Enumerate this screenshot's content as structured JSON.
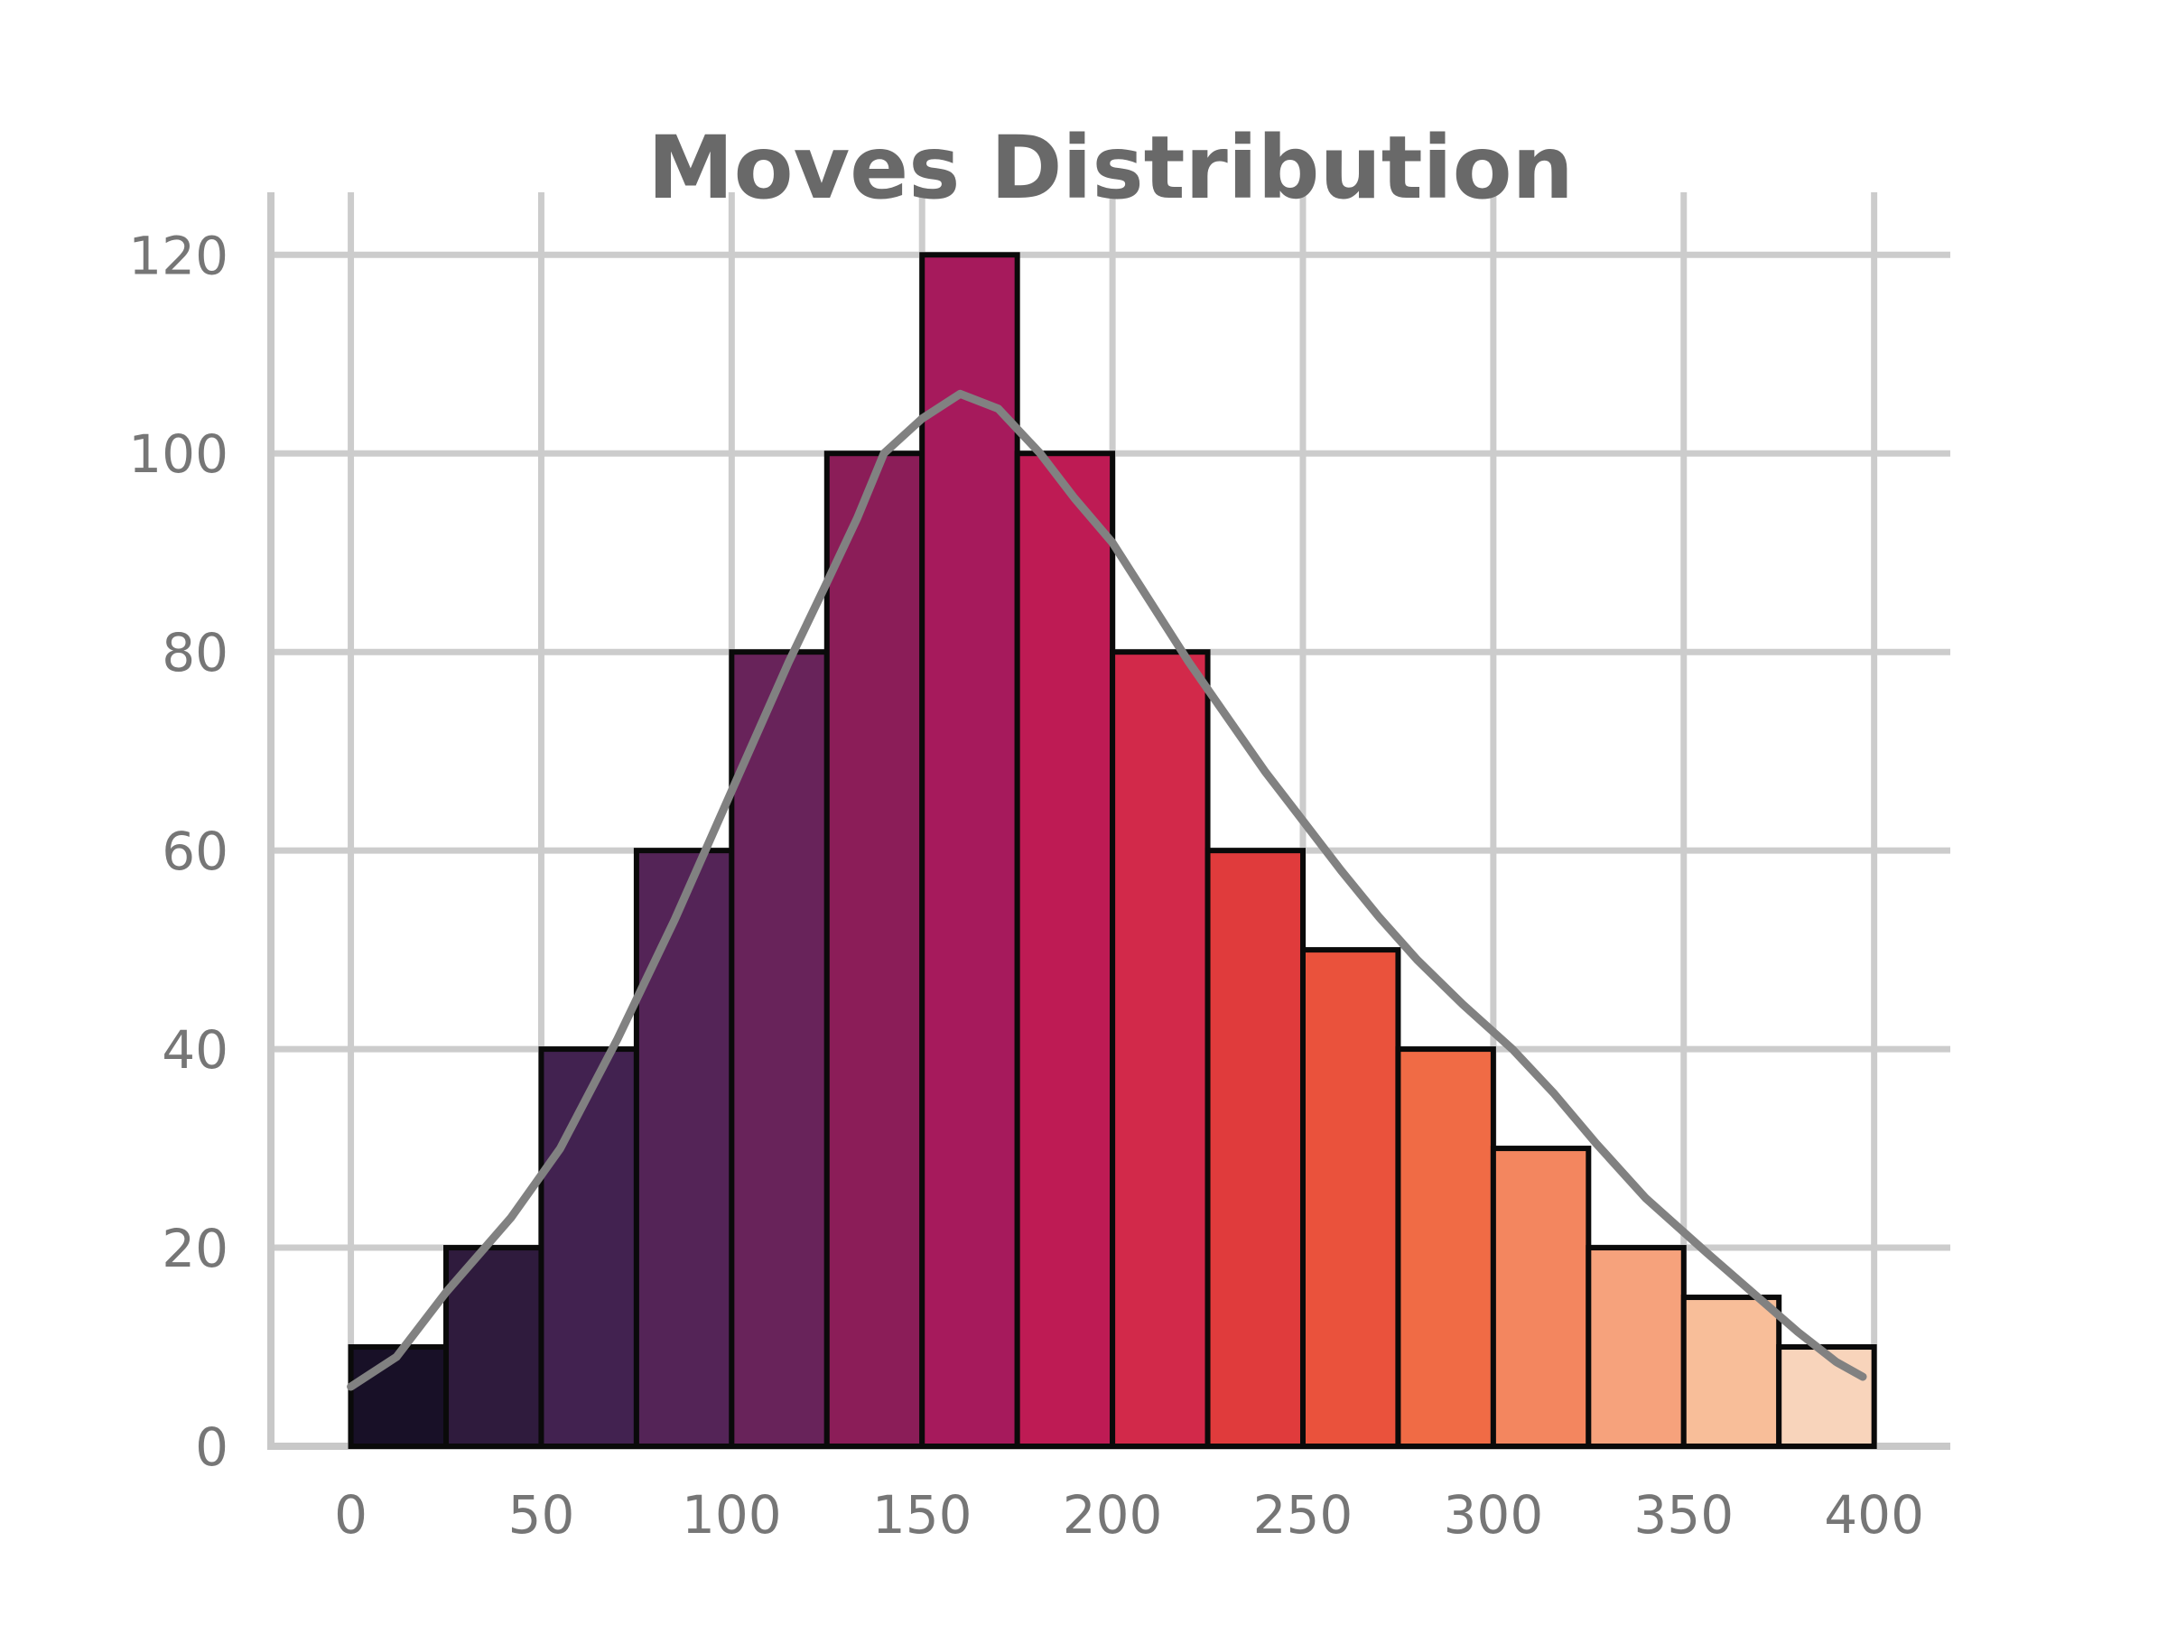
{
  "title": "Moves Distribution",
  "chart_data": {
    "type": "bar",
    "subtype": "histogram-with-kde",
    "title": "Moves Distribution",
    "xlabel": "",
    "ylabel": "",
    "bin_start": 0,
    "bin_width": 25,
    "bin_edges": [
      0,
      25,
      50,
      75,
      100,
      125,
      150,
      175,
      200,
      225,
      250,
      275,
      300,
      325,
      350,
      375,
      400
    ],
    "values": [
      10,
      20,
      40,
      60,
      80,
      100,
      120,
      100,
      80,
      60,
      50,
      40,
      30,
      20,
      15,
      10
    ],
    "bar_colors": [
      "#181027",
      "#2F1B3D",
      "#422250",
      "#542457",
      "#68235A",
      "#8B1D58",
      "#A61A5C",
      "#BE1B54",
      "#D2294A",
      "#E03B3C",
      "#EA523C",
      "#F06B45",
      "#F3865F",
      "#F6A27C",
      "#F8BE99",
      "#F8D4BB"
    ],
    "bar_edge_color": "#0a0a0a",
    "x_ticks": [
      0,
      50,
      100,
      150,
      200,
      250,
      300,
      350,
      400
    ],
    "y_ticks": [
      0,
      20,
      40,
      60,
      80,
      100,
      120
    ],
    "xlim": [
      -21,
      420
    ],
    "ylim": [
      0,
      126.3
    ],
    "grid": true,
    "legend": false,
    "grid_color": "#cccccc",
    "spine_color": "#c8c8c8",
    "tick_label_color": "#767676",
    "title_color": "#696969",
    "kde_color": "#818181",
    "kde_points": [
      [
        0,
        6
      ],
      [
        12,
        9
      ],
      [
        25,
        15.5
      ],
      [
        42,
        23
      ],
      [
        55,
        30
      ],
      [
        70,
        41
      ],
      [
        85,
        53
      ],
      [
        100,
        66
      ],
      [
        115,
        79
      ],
      [
        125,
        87
      ],
      [
        133,
        93.5
      ],
      [
        140,
        100
      ],
      [
        150,
        103.5
      ],
      [
        160,
        106
      ],
      [
        170,
        104.5
      ],
      [
        181,
        100
      ],
      [
        190,
        95.5
      ],
      [
        200,
        91
      ],
      [
        210,
        85
      ],
      [
        220,
        79
      ],
      [
        230,
        73.5
      ],
      [
        240,
        68
      ],
      [
        250,
        63
      ],
      [
        260,
        58
      ],
      [
        270,
        53.3
      ],
      [
        280,
        49
      ],
      [
        292,
        44.5
      ],
      [
        305,
        40
      ],
      [
        316,
        35.5
      ],
      [
        327,
        30.5
      ],
      [
        340,
        25
      ],
      [
        356,
        19.5
      ],
      [
        368,
        15.5
      ],
      [
        380,
        11.5
      ],
      [
        390,
        8.5
      ],
      [
        397,
        7
      ]
    ]
  }
}
